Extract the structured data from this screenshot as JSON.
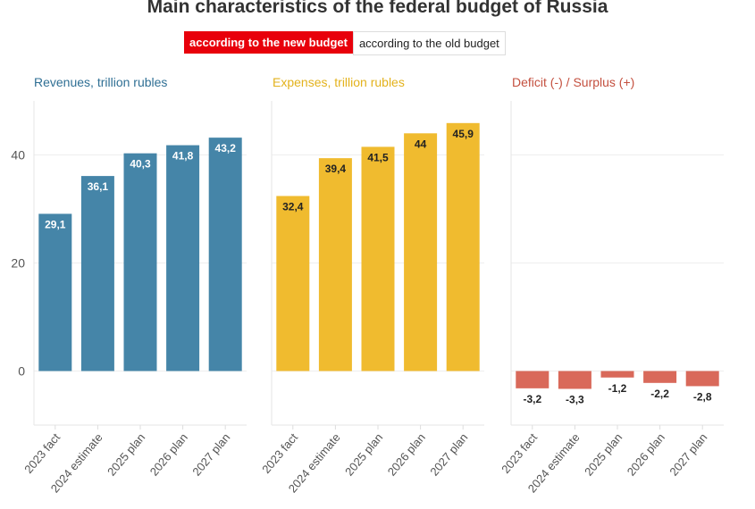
{
  "title": "Main characteristics of the federal budget of Russia",
  "toggle": {
    "active": "according to the new budget",
    "inactive": "according to the old budget"
  },
  "chart_data": [
    {
      "type": "bar",
      "title": "Revenues, trillion rubles",
      "color": "#4585a8",
      "categories": [
        "2023 fact",
        "2024 estimate",
        "2025 plan",
        "2026 plan",
        "2027 plan"
      ],
      "values": [
        29.1,
        36.1,
        40.3,
        41.8,
        43.2
      ],
      "labels": [
        "29,1",
        "36,1",
        "40,3",
        "41,8",
        "43,2"
      ],
      "ylim": [
        -10,
        50
      ],
      "yticks": [
        0,
        20,
        40
      ],
      "grid": true
    },
    {
      "type": "bar",
      "title": "Expenses, trillion rubles",
      "color": "#f0bb2f",
      "categories": [
        "2023 fact",
        "2024 estimate",
        "2025 plan",
        "2026 plan",
        "2027 plan"
      ],
      "values": [
        32.4,
        39.4,
        41.5,
        44,
        45.9
      ],
      "labels": [
        "32,4",
        "39,4",
        "41,5",
        "44",
        "45,9"
      ],
      "ylim": [
        -10,
        50
      ],
      "grid": true
    },
    {
      "type": "bar",
      "title": "Deficit (-) / Surplus (+)",
      "color": "#d9695a",
      "categories": [
        "2023 fact",
        "2024 estimate",
        "2025 plan",
        "2026 plan",
        "2027 plan"
      ],
      "values": [
        -3.2,
        -3.3,
        -1.2,
        -2.2,
        -2.8
      ],
      "labels": [
        "-3,2",
        "-3,3",
        "-1,2",
        "-2,2",
        "-2,8"
      ],
      "ylim": [
        -10,
        50
      ],
      "grid": true
    }
  ]
}
